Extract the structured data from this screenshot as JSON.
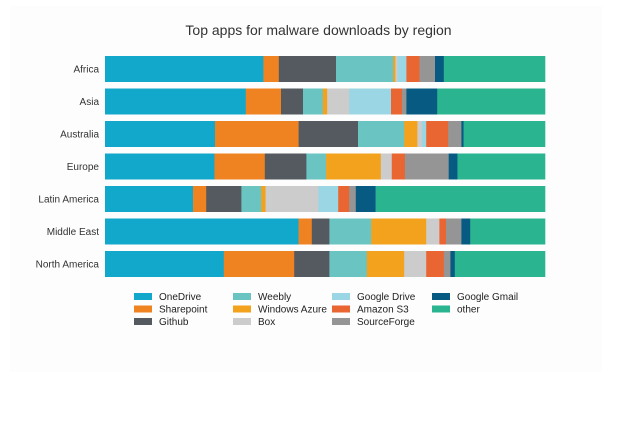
{
  "chart_data": {
    "type": "bar",
    "orientation": "horizontal",
    "stacked": "percent",
    "title": "Top apps for malware downloads by region",
    "xlabel": "",
    "ylabel": "",
    "xlim": [
      0,
      100
    ],
    "grid": false,
    "legend_position": "bottom",
    "categories": [
      "Africa",
      "Asia",
      "Australia",
      "Europe",
      "Latin America",
      "Middle East",
      "North America"
    ],
    "series": [
      {
        "name": "OneDrive",
        "color": "#12a8cc",
        "values": [
          36,
          32,
          25,
          25,
          20,
          44,
          27
        ]
      },
      {
        "name": "Sharepoint",
        "color": "#ef8322",
        "values": [
          3.5,
          8,
          19,
          11.5,
          3,
          3,
          16
        ]
      },
      {
        "name": "Github",
        "color": "#555a60",
        "values": [
          13,
          5,
          13.5,
          9.5,
          8,
          4,
          8
        ]
      },
      {
        "name": "Weebly",
        "color": "#69c4c2",
        "values": [
          13,
          4.5,
          10.5,
          4.5,
          4.5,
          9.5,
          8.5
        ]
      },
      {
        "name": "Windows Azure",
        "color": "#f3a21d",
        "values": [
          0.5,
          1,
          3,
          12.5,
          1,
          12.5,
          8.5
        ]
      },
      {
        "name": "Box",
        "color": "#cccccc",
        "values": [
          0.5,
          5,
          1,
          2.5,
          12,
          3,
          5
        ]
      },
      {
        "name": "Google Drive",
        "color": "#9ad6e4",
        "values": [
          2,
          9.5,
          1,
          0,
          4.5,
          0,
          0
        ]
      },
      {
        "name": "Amazon S3",
        "color": "#e96531",
        "values": [
          3,
          2.5,
          5,
          3,
          2.5,
          1.5,
          4
        ]
      },
      {
        "name": "SourceForge",
        "color": "#959595",
        "values": [
          3.5,
          1,
          3,
          10,
          1.5,
          3.5,
          1.5
        ]
      },
      {
        "name": "Google Gmail",
        "color": "#075a82",
        "values": [
          2,
          7,
          0.5,
          2,
          4.5,
          2,
          1
        ]
      },
      {
        "name": "other",
        "color": "#2ab48f",
        "values": [
          23,
          24.5,
          18.5,
          20,
          38.5,
          17,
          20.5
        ]
      }
    ]
  }
}
